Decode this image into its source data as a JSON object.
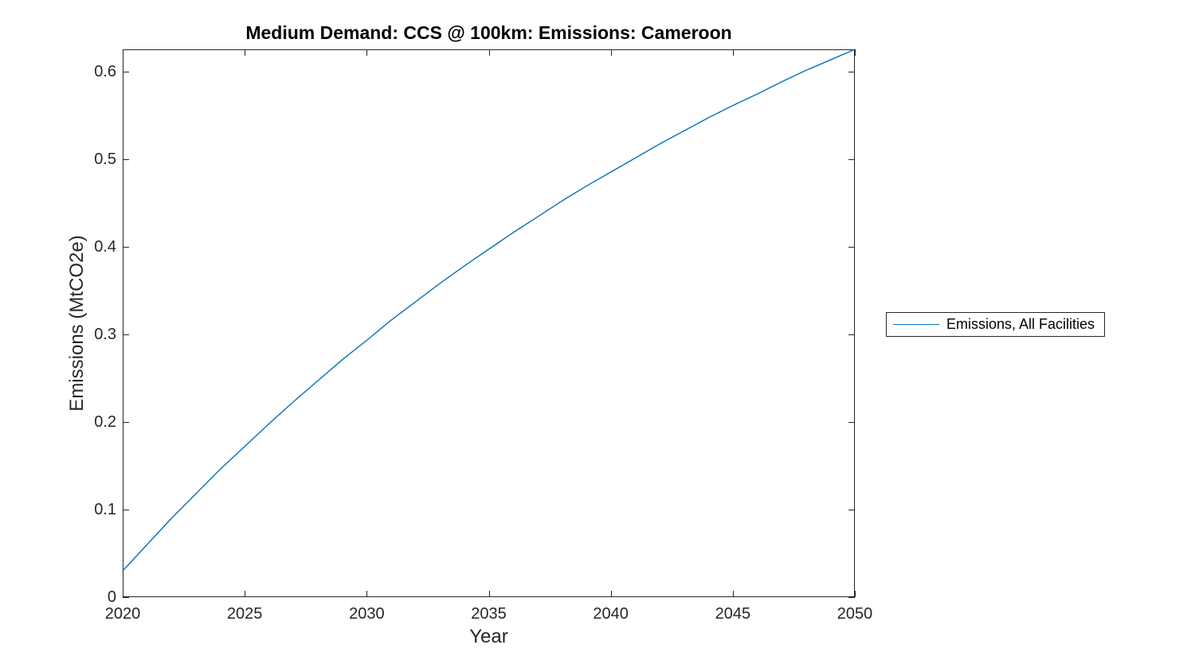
{
  "figure": {
    "background": "#ffffff"
  },
  "colors": {
    "line": "#0072BD",
    "axis": "#262626",
    "tick_text": "#262626",
    "title_text": "#000000",
    "legend_border": "#262626",
    "background": "#ffffff"
  },
  "chart_data": {
    "type": "line",
    "title": "Medium Demand: CCS @ 100km: Emissions: Cameroon",
    "xlabel": "Year",
    "ylabel": "Emissions (MtCO2e)",
    "xlim": [
      2020,
      2050
    ],
    "ylim": [
      0,
      0.625
    ],
    "grid": false,
    "box": true,
    "tick_direction": "in",
    "x_ticks": [
      2020,
      2025,
      2030,
      2035,
      2040,
      2045,
      2050
    ],
    "x_tick_labels": [
      "2020",
      "2025",
      "2030",
      "2035",
      "2040",
      "2045",
      "2050"
    ],
    "y_ticks": [
      0,
      0.1,
      0.2,
      0.3,
      0.4,
      0.5,
      0.6
    ],
    "y_tick_labels": [
      "0",
      "0.1",
      "0.2",
      "0.3",
      "0.4",
      "0.5",
      "0.6"
    ],
    "legend": {
      "position": "outside-right",
      "border": true,
      "entries": [
        "Emissions, All Facilities"
      ]
    },
    "series": [
      {
        "name": "Emissions, All Facilities",
        "color": "#0072BD",
        "x": [
          2020,
          2021,
          2022,
          2023,
          2024,
          2025,
          2026,
          2027,
          2028,
          2029,
          2030,
          2031,
          2032,
          2033,
          2034,
          2035,
          2036,
          2037,
          2038,
          2039,
          2040,
          2041,
          2042,
          2043,
          2044,
          2045,
          2046,
          2047,
          2048,
          2049,
          2050
        ],
        "values": [
          0.03,
          0.06,
          0.09,
          0.118,
          0.146,
          0.172,
          0.198,
          0.223,
          0.247,
          0.271,
          0.293,
          0.316,
          0.337,
          0.358,
          0.378,
          0.397,
          0.416,
          0.434,
          0.452,
          0.469,
          0.485,
          0.501,
          0.517,
          0.532,
          0.547,
          0.561,
          0.574,
          0.588,
          0.601,
          0.613,
          0.625
        ]
      }
    ]
  }
}
